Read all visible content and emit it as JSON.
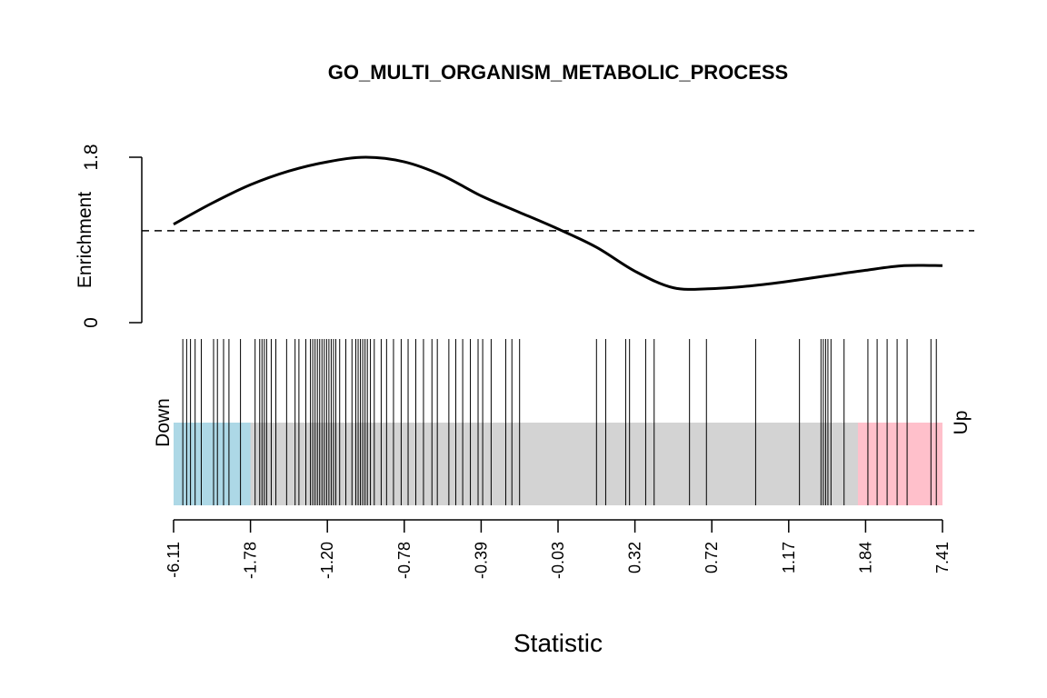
{
  "chart_data": {
    "type": "barcode",
    "title": "GO_MULTI_ORGANISM_METABOLIC_PROCESS",
    "xlabel": "Statistic",
    "enrichment": {
      "ylabel": "Enrichment",
      "yticks": [
        "0",
        "1.8"
      ],
      "ylim": [
        0,
        1.8
      ],
      "baseline": 1.0,
      "x": [
        0,
        0.05,
        0.1,
        0.15,
        0.2,
        0.25,
        0.3,
        0.35,
        0.4,
        0.45,
        0.5,
        0.55,
        0.6,
        0.65,
        0.7,
        0.75,
        0.8,
        0.85,
        0.9,
        0.95,
        1.0
      ],
      "y": [
        1.07,
        1.3,
        1.5,
        1.65,
        1.75,
        1.8,
        1.75,
        1.6,
        1.38,
        1.2,
        1.02,
        0.82,
        0.56,
        0.38,
        0.37,
        0.4,
        0.45,
        0.51,
        0.57,
        0.62,
        0.62
      ]
    },
    "barcode": {
      "down_label": "Down",
      "up_label": "Up",
      "down_region": [
        0,
        0.1
      ],
      "up_region": [
        0.89,
        1.0
      ],
      "colors": {
        "down": "#add8e6",
        "up": "#ffc0cb",
        "middle": "#d3d3d3"
      },
      "quantile_ticks": [
        "-6.11",
        "-1.78",
        "-1.20",
        "-0.78",
        "-0.39",
        "-0.03",
        "0.32",
        "0.72",
        "1.17",
        "1.84",
        "7.41"
      ],
      "gene_positions": [
        0.012,
        0.017,
        0.022,
        0.028,
        0.036,
        0.052,
        0.057,
        0.065,
        0.072,
        0.087,
        0.106,
        0.112,
        0.115,
        0.118,
        0.121,
        0.127,
        0.133,
        0.147,
        0.158,
        0.163,
        0.172,
        0.178,
        0.181,
        0.184,
        0.187,
        0.19,
        0.193,
        0.196,
        0.199,
        0.202,
        0.205,
        0.208,
        0.211,
        0.216,
        0.224,
        0.232,
        0.237,
        0.24,
        0.243,
        0.246,
        0.249,
        0.252,
        0.256,
        0.261,
        0.27,
        0.277,
        0.286,
        0.296,
        0.305,
        0.315,
        0.325,
        0.336,
        0.343,
        0.358,
        0.367,
        0.376,
        0.386,
        0.396,
        0.402,
        0.413,
        0.432,
        0.44,
        0.45,
        0.55,
        0.562,
        0.588,
        0.593,
        0.614,
        0.625,
        0.671,
        0.693,
        0.757,
        0.814,
        0.842,
        0.845,
        0.848,
        0.851,
        0.855,
        0.872,
        0.903,
        0.915,
        0.928,
        0.941,
        0.954,
        0.985,
        0.992
      ]
    }
  }
}
